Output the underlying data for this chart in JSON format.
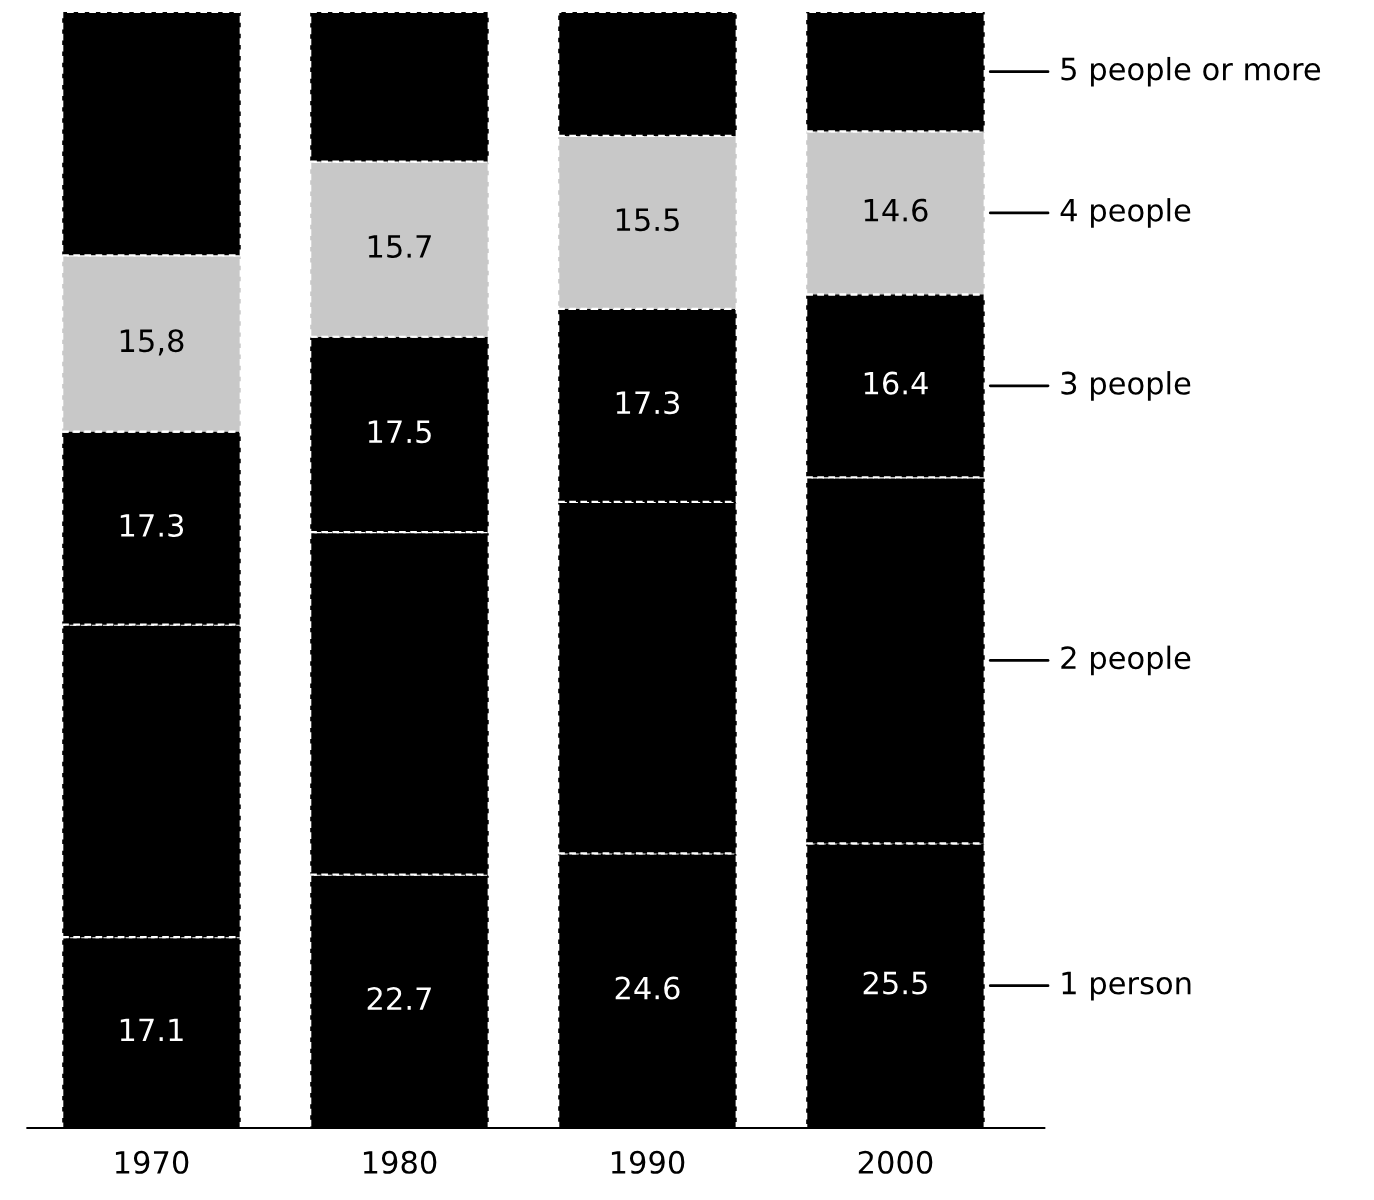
{
  "chart_data": {
    "type": "bar",
    "stacked": true,
    "categories": [
      "1970",
      "1980",
      "1990",
      "2000"
    ],
    "ylim": [
      0,
      100
    ],
    "tick_labels": "x",
    "grid": false,
    "legend": false,
    "series": [
      {
        "name": "1 person",
        "color": "#000000",
        "values": [
          17.1,
          22.7,
          24.6,
          25.5
        ],
        "value_labels": [
          "17.1",
          "22.7",
          "24.6",
          "25.5"
        ]
      },
      {
        "name": "2 people",
        "color": "#000000",
        "values": [
          28.0,
          30.7,
          31.5,
          32.8
        ],
        "value_labels": [
          null,
          null,
          null,
          null
        ]
      },
      {
        "name": "3 people",
        "color": "#000000",
        "values": [
          17.3,
          17.5,
          17.3,
          16.4
        ],
        "value_labels": [
          "17.3",
          "17.5",
          "17.3",
          "16.4"
        ]
      },
      {
        "name": "4 people",
        "color": "#c8c8c8",
        "values": [
          15.8,
          15.7,
          15.5,
          14.6
        ],
        "value_labels": [
          "15,8",
          "15.7",
          "15.5",
          "14.6"
        ]
      },
      {
        "name": "5 people or more",
        "color": "#000000",
        "values": [
          21.8,
          13.4,
          11.1,
          10.7
        ],
        "value_labels": [
          null,
          null,
          null,
          null
        ]
      }
    ]
  }
}
